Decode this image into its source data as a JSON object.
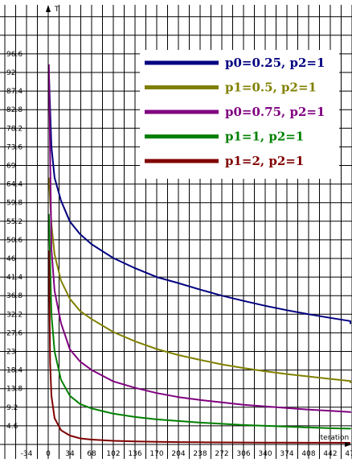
{
  "chart_data": {
    "type": "line",
    "title": "",
    "xlabel": "Iteration",
    "ylabel": "T",
    "xlim": [
      -102,
      500
    ],
    "ylim": [
      0,
      106
    ],
    "x_ticks": [
      -88,
      -34,
      0,
      34,
      68,
      102,
      136,
      170,
      204,
      238,
      272,
      306,
      340,
      374,
      408,
      442,
      476
    ],
    "y_ticks": [
      "4.6",
      "9.2",
      "13.8",
      "18.4",
      "23",
      "27.6",
      "32.2",
      "36.8",
      "41.4",
      "46",
      "50.6",
      "55.2",
      "59.8",
      "64.4",
      "69",
      "73.6",
      "78.2",
      "82.8",
      "87.4",
      "92",
      "96.6"
    ],
    "grid": true,
    "legend": {
      "position": "top-right"
    },
    "series": [
      {
        "name": "p0=0.25, p2=1",
        "color": "#000080",
        "x": [
          1,
          5,
          10,
          20,
          34,
          50,
          68,
          102,
          136,
          170,
          204,
          238,
          272,
          306,
          340,
          374,
          408,
          442,
          476,
          510
        ],
        "y": [
          92.0,
          73.6,
          66.0,
          60.3,
          55.1,
          52.0,
          49.5,
          46.1,
          43.6,
          41.4,
          39.9,
          38.3,
          36.8,
          35.5,
          34.3,
          33.2,
          32.2,
          31.3,
          30.5,
          29.8
        ]
      },
      {
        "name": "p1=0.5, p2=1",
        "color": "#808000",
        "x": [
          1,
          5,
          10,
          20,
          34,
          50,
          68,
          102,
          136,
          170,
          204,
          238,
          272,
          306,
          340,
          374,
          408,
          442,
          476,
          510
        ],
        "y": [
          66.0,
          54.5,
          47.0,
          40.5,
          36.0,
          33.0,
          31.0,
          27.8,
          25.5,
          23.6,
          22.1,
          20.9,
          19.8,
          18.9,
          18.1,
          17.4,
          16.8,
          16.2,
          15.7,
          15.2
        ]
      },
      {
        "name": "p0=0.75, p2=1",
        "color": "#800080",
        "x": [
          1,
          5,
          10,
          20,
          34,
          50,
          68,
          102,
          136,
          170,
          204,
          238,
          272,
          306,
          340,
          374,
          408,
          442,
          476,
          510
        ],
        "y": [
          94.0,
          48.3,
          38.0,
          30.0,
          23.5,
          20.5,
          18.4,
          15.6,
          14.0,
          12.7,
          11.7,
          11.0,
          10.4,
          9.8,
          9.4,
          9.0,
          8.6,
          8.3,
          8.0,
          7.8
        ]
      },
      {
        "name": "p1=1, p2=1",
        "color": "#008000",
        "x": [
          1,
          5,
          10,
          20,
          34,
          50,
          68,
          102,
          136,
          170,
          204,
          238,
          272,
          306,
          340,
          374,
          408,
          442,
          476,
          510
        ],
        "y": [
          57.0,
          32.2,
          23.0,
          16.0,
          12.0,
          10.0,
          8.9,
          7.6,
          6.8,
          6.2,
          5.8,
          5.4,
          5.1,
          4.8,
          4.6,
          4.4,
          4.2,
          4.0,
          3.9,
          3.8
        ]
      },
      {
        "name": "p1=2, p2=1",
        "color": "#800000",
        "x": [
          1,
          3,
          5,
          10,
          20,
          34,
          50,
          68,
          102,
          136,
          170,
          204,
          238,
          272,
          306,
          340,
          374,
          408,
          442,
          476,
          510
        ],
        "y": [
          48.0,
          20.0,
          12.0,
          6.5,
          3.5,
          2.2,
          1.5,
          1.2,
          0.9,
          0.75,
          0.65,
          0.58,
          0.53,
          0.5,
          0.47,
          0.45,
          0.43,
          0.42,
          0.41,
          0.4,
          0.4
        ]
      }
    ]
  }
}
